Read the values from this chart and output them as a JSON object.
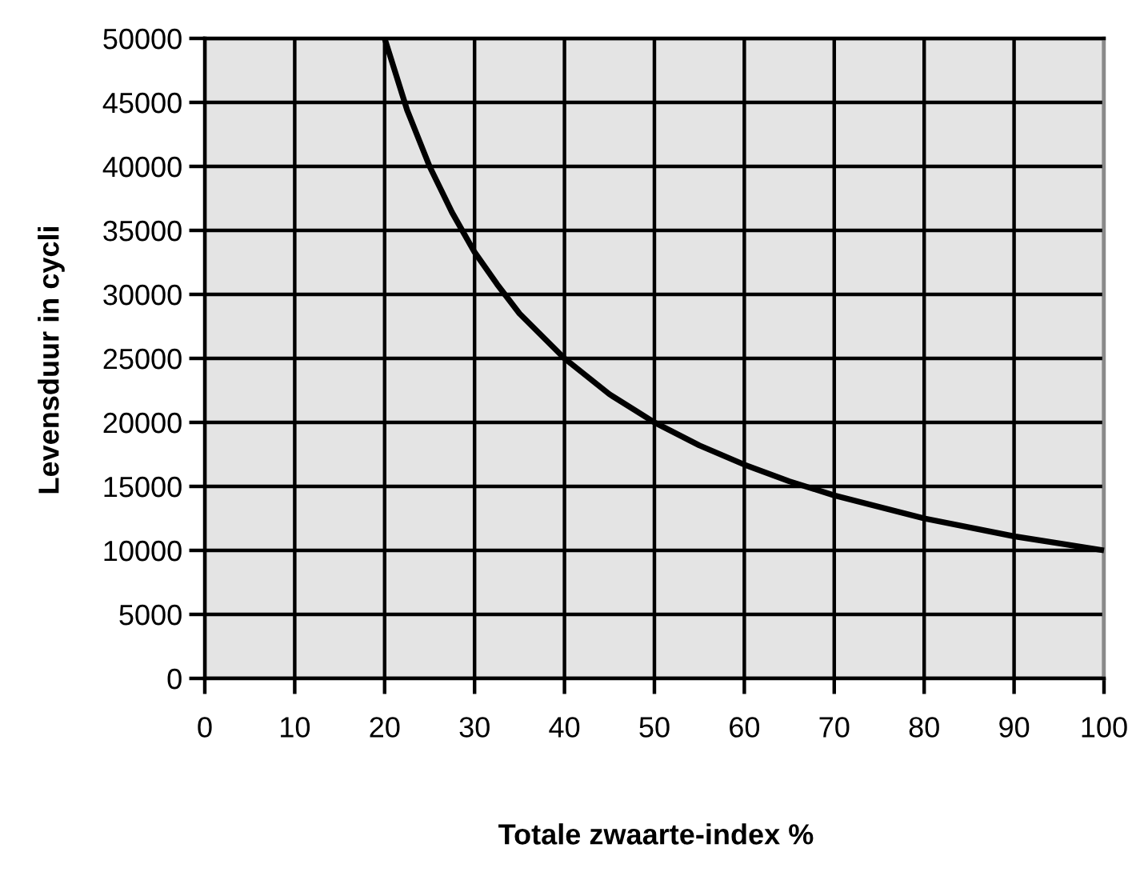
{
  "chart_data": {
    "type": "line",
    "xlabel": "Totale zwaarte-index %",
    "ylabel": "Levensduur in cycli",
    "series": [
      {
        "color": "#000000",
        "x": [
          20,
          22.5,
          25,
          27.5,
          30,
          32.5,
          35,
          40,
          45,
          50,
          55,
          60,
          65,
          70,
          80,
          90,
          100
        ],
        "values": [
          50000,
          44400,
          40000,
          36400,
          33300,
          30800,
          28500,
          25000,
          22200,
          20000,
          18200,
          16700,
          15400,
          14300,
          12500,
          11100,
          10000
        ]
      }
    ],
    "xlim": [
      0,
      100
    ],
    "xticks": [
      0,
      10,
      20,
      30,
      40,
      50,
      60,
      70,
      80,
      90,
      100
    ],
    "ylim": [
      0,
      50000
    ],
    "yticks": [
      0,
      5000,
      10000,
      15000,
      20000,
      25000,
      30000,
      35000,
      40000,
      45000,
      50000
    ],
    "grid": true,
    "marker": "none",
    "line_style": "solid"
  }
}
